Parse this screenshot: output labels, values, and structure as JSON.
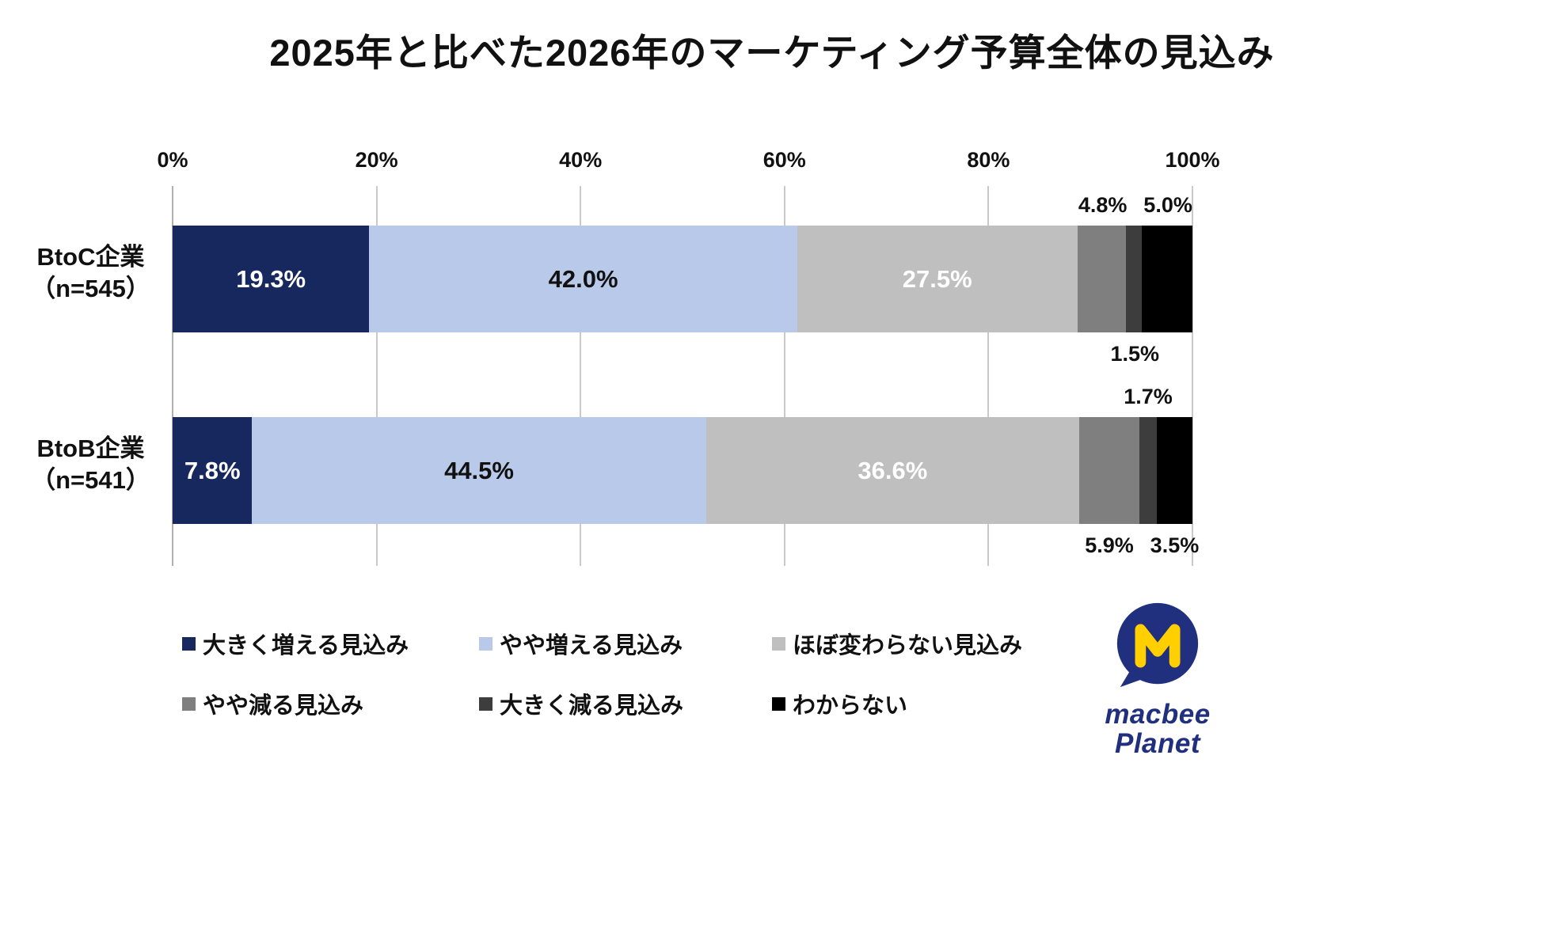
{
  "title": "2025年と比べた2026年のマーケティング予算全体の見込み",
  "chart_data": {
    "type": "bar",
    "orientation": "horizontal",
    "stacked": true,
    "title": "2025年と比べた2026年のマーケティング予算全体の見込み",
    "xlim": [
      0,
      100
    ],
    "x_ticks": [
      "0%",
      "20%",
      "40%",
      "60%",
      "80%",
      "100%"
    ],
    "grid": true,
    "categories": [
      "大きく増える見込み",
      "やや増える見込み",
      "ほぼ変わらない見込み",
      "やや減る見込み",
      "大きく減る見込み",
      "わからない"
    ],
    "colors": [
      "#16285e",
      "#b9c9e9",
      "#bfbfbf",
      "#7f7f7f",
      "#3d3d3d",
      "#000000"
    ],
    "inside_label_colors": [
      "#ffffff",
      "#111111",
      "#ffffff",
      "#ffffff",
      "#ffffff",
      "#ffffff"
    ],
    "rows": [
      {
        "label_line1": "BtoC企業",
        "label_line2": "（n=545）",
        "values": [
          19.3,
          42.0,
          27.5,
          4.8,
          1.5,
          5.0
        ],
        "value_labels": [
          "19.3%",
          "42.0%",
          "27.5%",
          "4.8%",
          "1.5%",
          "5.0%"
        ],
        "label_placement": [
          "inside",
          "inside",
          "inside",
          "above",
          "below",
          "above"
        ]
      },
      {
        "label_line1": "BtoB企業",
        "label_line2": "（n=541）",
        "values": [
          7.8,
          44.5,
          36.6,
          5.9,
          1.7,
          3.5
        ],
        "value_labels": [
          "7.8%",
          "44.5%",
          "36.6%",
          "5.9%",
          "1.7%",
          "3.5%"
        ],
        "label_placement": [
          "inside",
          "inside",
          "inside",
          "below",
          "above",
          "below"
        ]
      }
    ],
    "legend": [
      {
        "label": "大きく増える見込み",
        "color": "#16285e"
      },
      {
        "label": "やや増える見込み",
        "color": "#b9c9e9"
      },
      {
        "label": "ほぼ変わらない見込み",
        "color": "#bfbfbf"
      },
      {
        "label": "やや減る見込み",
        "color": "#7f7f7f"
      },
      {
        "label": "大きく減る見込み",
        "color": "#3d3d3d"
      },
      {
        "label": "わからない",
        "color": "#000000"
      }
    ],
    "legend_position": "bottom"
  },
  "logo": {
    "line1": "macbee",
    "line2": "Planet",
    "brand_blue": "#20307f",
    "brand_yellow": "#ffcf00"
  }
}
